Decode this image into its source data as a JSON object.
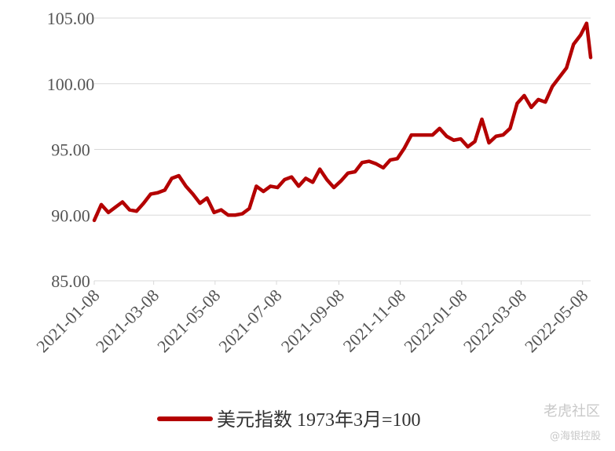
{
  "chart_data": {
    "type": "line",
    "x": [
      "2021-01-08",
      "2021-01-15",
      "2021-01-22",
      "2021-01-29",
      "2021-02-05",
      "2021-02-12",
      "2021-02-19",
      "2021-02-26",
      "2021-03-05",
      "2021-03-12",
      "2021-03-19",
      "2021-03-26",
      "2021-04-02",
      "2021-04-09",
      "2021-04-16",
      "2021-04-23",
      "2021-04-30",
      "2021-05-07",
      "2021-05-14",
      "2021-05-21",
      "2021-05-28",
      "2021-06-04",
      "2021-06-11",
      "2021-06-18",
      "2021-06-25",
      "2021-07-02",
      "2021-07-09",
      "2021-07-16",
      "2021-07-23",
      "2021-07-30",
      "2021-08-06",
      "2021-08-13",
      "2021-08-20",
      "2021-08-27",
      "2021-09-03",
      "2021-09-10",
      "2021-09-17",
      "2021-09-24",
      "2021-10-01",
      "2021-10-08",
      "2021-10-15",
      "2021-10-22",
      "2021-10-29",
      "2021-11-05",
      "2021-11-12",
      "2021-11-19",
      "2021-11-26",
      "2021-12-03",
      "2021-12-10",
      "2021-12-17",
      "2021-12-24",
      "2021-12-31",
      "2022-01-07",
      "2022-01-14",
      "2022-01-21",
      "2022-01-28",
      "2022-02-04",
      "2022-02-11",
      "2022-02-18",
      "2022-02-25",
      "2022-03-04",
      "2022-03-11",
      "2022-03-18",
      "2022-03-25",
      "2022-04-01",
      "2022-04-08",
      "2022-04-15",
      "2022-04-22",
      "2022-04-29",
      "2022-05-06",
      "2022-05-12",
      "2022-05-16"
    ],
    "series": [
      {
        "name": "美元指数 1973年3月=100",
        "color": "#b40000",
        "values": [
          89.6,
          90.8,
          90.2,
          90.6,
          91.0,
          90.4,
          90.3,
          90.9,
          91.6,
          91.7,
          91.9,
          92.8,
          93.0,
          92.2,
          91.6,
          90.9,
          91.3,
          90.2,
          90.4,
          90.0,
          90.0,
          90.1,
          90.5,
          92.2,
          91.8,
          92.2,
          92.1,
          92.7,
          92.9,
          92.2,
          92.8,
          92.5,
          93.5,
          92.7,
          92.1,
          92.6,
          93.2,
          93.3,
          94.0,
          94.1,
          93.9,
          93.6,
          94.2,
          94.3,
          95.1,
          96.1,
          96.1,
          96.1,
          96.1,
          96.6,
          96.0,
          95.7,
          95.8,
          95.2,
          95.6,
          97.3,
          95.5,
          96.0,
          96.1,
          96.6,
          98.5,
          99.1,
          98.2,
          98.8,
          98.6,
          99.8,
          100.5,
          101.2,
          103.0,
          103.7,
          104.6,
          102.0
        ]
      }
    ],
    "xlim": [
      "2021-01-08",
      "2022-05-16"
    ],
    "xticks": [
      "2021-01-08",
      "2021-03-08",
      "2021-05-08",
      "2021-07-08",
      "2021-09-08",
      "2021-11-08",
      "2022-01-08",
      "2022-03-08",
      "2022-05-08"
    ],
    "ylim": [
      85,
      105
    ],
    "yticks": [
      {
        "value": 85,
        "label": "85.00"
      },
      {
        "value": 90,
        "label": "90.00"
      },
      {
        "value": 95,
        "label": "95.00"
      },
      {
        "value": 100,
        "label": "100.00"
      },
      {
        "value": 105,
        "label": "105.00"
      }
    ],
    "grid": true,
    "legend": "bottom",
    "watermark": [
      "老虎社区",
      "@海银控股"
    ]
  }
}
